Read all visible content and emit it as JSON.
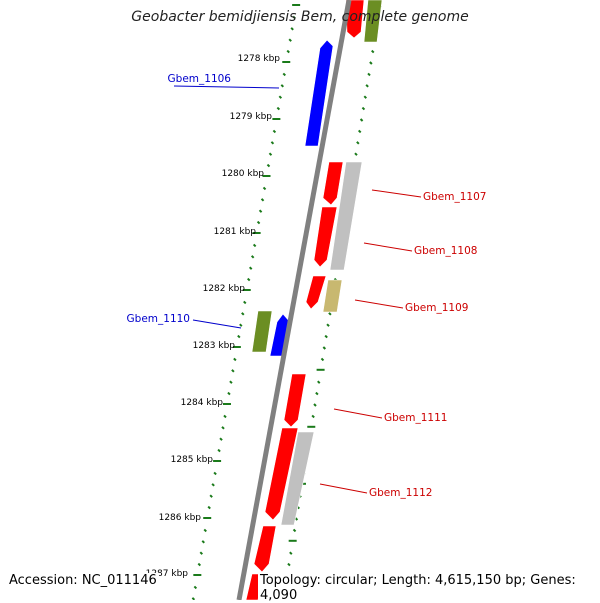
{
  "title": "Geobacter bemidjiensis Bem, complete genome",
  "accession": "Accession: NC_011146",
  "topology": "Topology: circular; Length: 4,615,150 bp; Genes: 4,090",
  "colors": {
    "backbone": "#808080",
    "tick": "#1a7a1a",
    "red_gene": "#ff0000",
    "blue_gene": "#0000ff",
    "olive_gene": "#6b8e23",
    "grey_gene": "#c0c0c0",
    "khaki_gene": "#c8b870",
    "label_blue": "#0000cc",
    "label_red": "#cc0000"
  },
  "kbp_labels": [
    "1278 kbp",
    "1279 kbp",
    "1280 kbp",
    "1281 kbp",
    "1282 kbp",
    "1283 kbp",
    "1284 kbp",
    "1285 kbp",
    "1286 kbp",
    "1287 kbp"
  ],
  "gene_labels": [
    {
      "text": "Gbem_1106",
      "color": "blue"
    },
    {
      "text": "Gbem_1107",
      "color": "red"
    },
    {
      "text": "Gbem_1108",
      "color": "red"
    },
    {
      "text": "Gbem_1109",
      "color": "red"
    },
    {
      "text": "Gbem_1110",
      "color": "blue"
    },
    {
      "text": "Gbem_1111",
      "color": "red"
    },
    {
      "text": "Gbem_1112",
      "color": "red"
    }
  ]
}
